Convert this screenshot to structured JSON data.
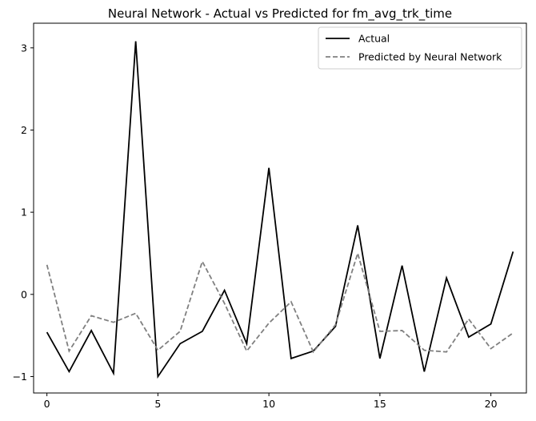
{
  "chart_data": {
    "type": "line",
    "title": "Neural Network - Actual vs Predicted for fm_avg_trk_time",
    "xlabel": "",
    "ylabel": "",
    "xlim": [
      -0.6,
      21.6
    ],
    "ylim": [
      -1.2,
      3.3
    ],
    "x_ticks": [
      0,
      5,
      10,
      15,
      20
    ],
    "y_ticks": [
      -1,
      0,
      1,
      2,
      3
    ],
    "x_tick_labels": [
      "0",
      "5",
      "10",
      "15",
      "20"
    ],
    "y_tick_labels": [
      "−1",
      "0",
      "1",
      "2",
      "3"
    ],
    "grid": false,
    "legend_position": "top-right",
    "x": [
      0,
      1,
      2,
      3,
      4,
      5,
      6,
      7,
      8,
      9,
      10,
      11,
      12,
      13,
      14,
      15,
      16,
      17,
      18,
      19,
      20,
      21
    ],
    "series": [
      {
        "name": "Actual",
        "color": "#000000",
        "style": "solid",
        "values": [
          -0.46,
          -0.94,
          -0.44,
          -0.96,
          3.08,
          -1.0,
          -0.6,
          -0.45,
          0.05,
          -0.6,
          1.54,
          -0.78,
          -0.69,
          -0.39,
          0.84,
          -0.78,
          0.35,
          -0.94,
          0.2,
          -0.52,
          -0.36,
          0.52
        ]
      },
      {
        "name": "Predicted by Neural Network",
        "color": "#808080",
        "style": "dashed",
        "values": [
          0.36,
          -0.69,
          -0.26,
          -0.34,
          -0.23,
          -0.68,
          -0.45,
          0.4,
          -0.11,
          -0.69,
          -0.35,
          -0.09,
          -0.7,
          -0.37,
          0.5,
          -0.45,
          -0.44,
          -0.68,
          -0.7,
          -0.3,
          -0.66,
          -0.47
        ]
      }
    ]
  }
}
